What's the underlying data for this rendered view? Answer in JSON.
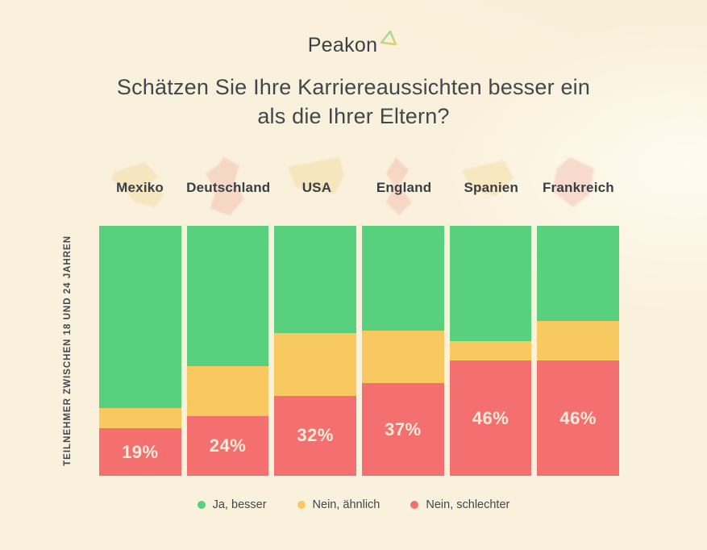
{
  "logo": {
    "text": "Peakon"
  },
  "title": {
    "line1": "Schätzen Sie Ihre Karriereaussichten besser ein",
    "line2": "als die Ihrer Eltern?"
  },
  "y_axis_label": "TEILNEHMER ZWISCHEN 18 UND 24 JAHREN",
  "colors": {
    "background": "#faf1dd",
    "green": "#58d07d",
    "yellow": "#f7c960",
    "red": "#f47070",
    "text_dark": "#3e454a",
    "percent_label": "#f9ecd9",
    "map_tint_yellow": "#f0d489",
    "map_tint_red": "#efada0"
  },
  "chart_data": {
    "type": "bar",
    "stacked": true,
    "unit": "percent",
    "title": "Schätzen Sie Ihre Karriereaussichten besser ein als die Ihrer Eltern?",
    "ylabel": "TEILNEHMER ZWISCHEN 18 UND 24 JAHREN",
    "legend_position": "bottom",
    "grid": false,
    "ylim": [
      0,
      100
    ],
    "categories": [
      "Mexiko",
      "Deutschland",
      "USA",
      "England",
      "Spanien",
      "Frankreich"
    ],
    "series": [
      {
        "name": "Ja, besser",
        "color": "#58d07d",
        "values": [
          73,
          56,
          43,
          42,
          46,
          38
        ]
      },
      {
        "name": "Nein, ähnlich",
        "color": "#f7c960",
        "values": [
          8,
          20,
          25,
          21,
          8,
          16
        ]
      },
      {
        "name": "Nein, schlechter",
        "color": "#f47070",
        "values": [
          19,
          24,
          32,
          37,
          46,
          46
        ]
      }
    ],
    "data_labels_series": "Nein, schlechter",
    "data_labels": [
      "19%",
      "24%",
      "32%",
      "37%",
      "46%",
      "46%"
    ],
    "category_map_tints": [
      "#f0d489",
      "#efada0",
      "#f0d489",
      "#efada0",
      "#f0d489",
      "#efada0"
    ]
  },
  "legend": {
    "items": [
      {
        "label": "Ja, besser",
        "color": "#58d07d"
      },
      {
        "label": "Nein, ähnlich",
        "color": "#f7c960"
      },
      {
        "label": "Nein, schlechter",
        "color": "#f47070"
      }
    ]
  }
}
